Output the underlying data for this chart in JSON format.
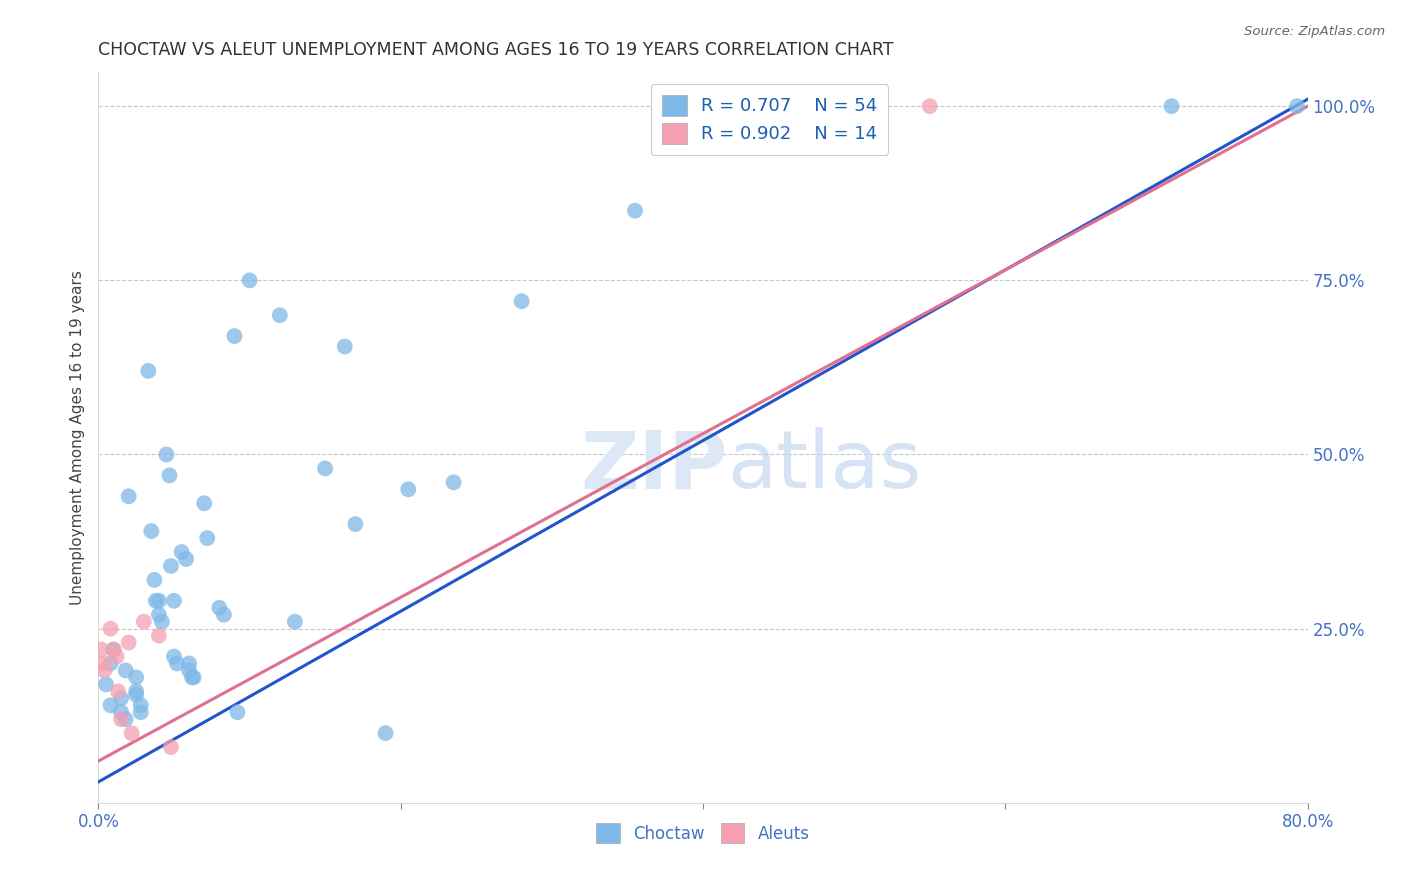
{
  "title": "CHOCTAW VS ALEUT UNEMPLOYMENT AMONG AGES 16 TO 19 YEARS CORRELATION CHART",
  "source": "Source: ZipAtlas.com",
  "ylabel": "Unemployment Among Ages 16 to 19 years",
  "choctaw_color": "#7eb8e8",
  "aleut_color": "#f4a0b0",
  "line_choctaw_color": "#2255cc",
  "line_aleut_color": "#e07090",
  "background_color": "#ffffff",
  "grid_color": "#c8c8c8",
  "xlim": [
    0.0,
    0.8
  ],
  "ylim": [
    0.0,
    1.05
  ],
  "xticks": [
    0.0,
    0.2,
    0.4,
    0.6,
    0.8
  ],
  "yticks": [
    0.0,
    0.25,
    0.5,
    0.75,
    1.0
  ],
  "choctaw_trendline_x": [
    0.0,
    0.8
  ],
  "choctaw_trendline_y": [
    0.03,
    1.01
  ],
  "aleut_trendline_x": [
    0.0,
    0.8
  ],
  "aleut_trendline_y": [
    0.06,
    1.0
  ],
  "choctaw_points": [
    [
      0.005,
      0.17
    ],
    [
      0.008,
      0.2
    ],
    [
      0.008,
      0.14
    ],
    [
      0.01,
      0.22
    ],
    [
      0.015,
      0.15
    ],
    [
      0.015,
      0.13
    ],
    [
      0.018,
      0.12
    ],
    [
      0.018,
      0.19
    ],
    [
      0.02,
      0.44
    ],
    [
      0.025,
      0.16
    ],
    [
      0.025,
      0.18
    ],
    [
      0.025,
      0.155
    ],
    [
      0.028,
      0.14
    ],
    [
      0.028,
      0.13
    ],
    [
      0.033,
      0.62
    ],
    [
      0.035,
      0.39
    ],
    [
      0.037,
      0.32
    ],
    [
      0.038,
      0.29
    ],
    [
      0.04,
      0.29
    ],
    [
      0.04,
      0.27
    ],
    [
      0.042,
      0.26
    ],
    [
      0.045,
      0.5
    ],
    [
      0.047,
      0.47
    ],
    [
      0.048,
      0.34
    ],
    [
      0.05,
      0.29
    ],
    [
      0.05,
      0.21
    ],
    [
      0.052,
      0.2
    ],
    [
      0.055,
      0.36
    ],
    [
      0.058,
      0.35
    ],
    [
      0.06,
      0.2
    ],
    [
      0.06,
      0.19
    ],
    [
      0.062,
      0.18
    ],
    [
      0.063,
      0.18
    ],
    [
      0.07,
      0.43
    ],
    [
      0.072,
      0.38
    ],
    [
      0.08,
      0.28
    ],
    [
      0.083,
      0.27
    ],
    [
      0.09,
      0.67
    ],
    [
      0.092,
      0.13
    ],
    [
      0.1,
      0.75
    ],
    [
      0.12,
      0.7
    ],
    [
      0.13,
      0.26
    ],
    [
      0.15,
      0.48
    ],
    [
      0.163,
      0.655
    ],
    [
      0.17,
      0.4
    ],
    [
      0.19,
      0.1
    ],
    [
      0.205,
      0.45
    ],
    [
      0.235,
      0.46
    ],
    [
      0.28,
      0.72
    ],
    [
      0.355,
      0.85
    ],
    [
      0.42,
      1.0
    ],
    [
      0.435,
      1.0
    ],
    [
      0.71,
      1.0
    ],
    [
      0.793,
      1.0
    ]
  ],
  "aleut_points": [
    [
      0.002,
      0.22
    ],
    [
      0.003,
      0.2
    ],
    [
      0.004,
      0.19
    ],
    [
      0.008,
      0.25
    ],
    [
      0.01,
      0.22
    ],
    [
      0.012,
      0.21
    ],
    [
      0.013,
      0.16
    ],
    [
      0.015,
      0.12
    ],
    [
      0.02,
      0.23
    ],
    [
      0.022,
      0.1
    ],
    [
      0.03,
      0.26
    ],
    [
      0.04,
      0.24
    ],
    [
      0.55,
      1.0
    ],
    [
      0.048,
      0.08
    ]
  ]
}
